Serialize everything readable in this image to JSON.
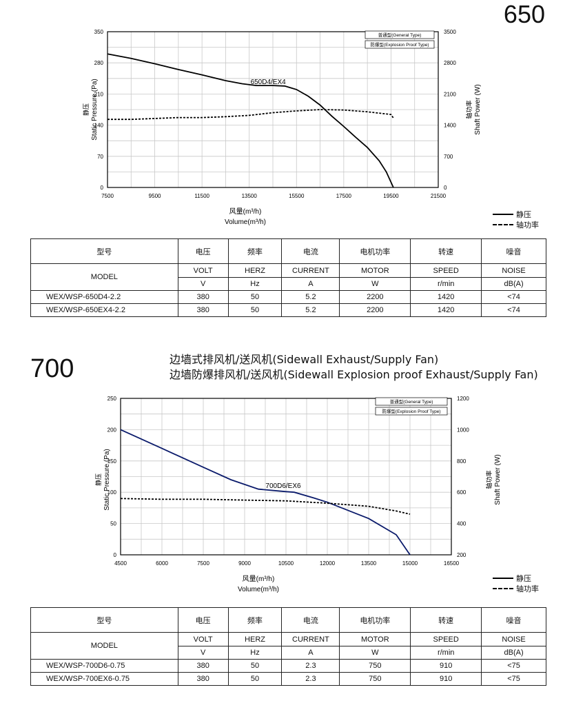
{
  "charts": [
    {
      "size_label": "650",
      "tag_general": "普通型(General Type)",
      "tag_explosion": "防爆型(Explosion Proof Type)",
      "legend_static": "静压",
      "legend_power": "轴功率",
      "table": {
        "headers_cn": [
          "型号",
          "电压",
          "频率",
          "电流",
          "电机功率",
          "转速",
          "噪音"
        ],
        "headers_en": [
          "MODEL",
          "VOLT",
          "HERZ",
          "CURRENT",
          "MOTOR",
          "SPEED",
          "NOISE"
        ],
        "units": [
          "V",
          "Hz",
          "A",
          "W",
          "r/min",
          "dB(A)"
        ],
        "rows": [
          [
            "WEX/WSP-650D4-2.2",
            "380",
            "50",
            "5.2",
            "2200",
            "1420",
            "<74"
          ],
          [
            "WEX/WSP-650EX4-2.2",
            "380",
            "50",
            "5.2",
            "2200",
            "1420",
            "<74"
          ]
        ]
      }
    },
    {
      "size_label": "700",
      "title_line1": "边墙式排风机/送风机(Sidewall Exhaust/Supply  Fan)",
      "title_line2": "边墙防爆排风机/送风机(Sidewall Explosion proof Exhaust/Supply Fan)",
      "tag_general": "普通型(General Type)",
      "tag_explosion": "防爆型(Explosion Proof Type)",
      "legend_static": "静压",
      "legend_power": "轴功率",
      "table": {
        "headers_cn": [
          "型号",
          "电压",
          "频率",
          "电流",
          "电机功率",
          "转速",
          "噪音"
        ],
        "headers_en": [
          "MODEL",
          "VOLT",
          "HERZ",
          "CURRENT",
          "MOTOR",
          "SPEED",
          "NOISE"
        ],
        "units": [
          "V",
          "Hz",
          "A",
          "W",
          "r/min",
          "dB(A)"
        ],
        "rows": [
          [
            "WEX/WSP-700D6-0.75",
            "380",
            "50",
            "2.3",
            "750",
            "910",
            "<75"
          ],
          [
            "WEX/WSP-700EX6-0.75",
            "380",
            "50",
            "2.3",
            "750",
            "910",
            "<75"
          ]
        ]
      }
    }
  ],
  "chart_data": [
    {
      "type": "line",
      "title": "",
      "xlabel_cn": "风量(m³/h)",
      "xlabel": "Volume(m³/h)",
      "ylabel_cn": "静压",
      "ylabel": "Static Pressure (Pa)",
      "y2label_cn": "轴功率",
      "y2label": "Shaft Power (W)",
      "xlim": [
        7500,
        21500
      ],
      "ylim": [
        0,
        350
      ],
      "y2lim": [
        0,
        3500
      ],
      "xticks": [
        7500,
        9500,
        11500,
        13500,
        15500,
        17500,
        19500,
        21500
      ],
      "yticks": [
        0,
        70,
        140,
        210,
        280,
        350
      ],
      "y2ticks": [
        0,
        700,
        1400,
        2100,
        2800,
        3500
      ],
      "grid": true,
      "curve_label": "650D4/EX4",
      "series": [
        {
          "name": "静压",
          "axis": "left",
          "style": "solid",
          "x": [
            7500,
            8500,
            9500,
            10500,
            11500,
            12500,
            13200,
            13800,
            14500,
            15000,
            15500,
            16000,
            16500,
            17000,
            17500,
            18000,
            18500,
            19000,
            19300,
            19600
          ],
          "y": [
            300,
            290,
            278,
            265,
            253,
            240,
            233,
            229,
            229,
            228,
            220,
            205,
            185,
            160,
            137,
            113,
            90,
            60,
            35,
            0
          ]
        },
        {
          "name": "轴功率",
          "axis": "right",
          "style": "dashed",
          "x": [
            7500,
            8500,
            9500,
            10500,
            11500,
            12500,
            13500,
            14500,
            15500,
            16500,
            17500,
            18500,
            19500,
            19600
          ],
          "y": [
            1530,
            1530,
            1550,
            1570,
            1570,
            1590,
            1620,
            1680,
            1720,
            1750,
            1740,
            1700,
            1640,
            1560
          ]
        }
      ]
    },
    {
      "type": "line",
      "title": "",
      "xlabel_cn": "风量(m³/h)",
      "xlabel": "Volume(m³/h)",
      "ylabel_cn": "静压",
      "ylabel": "Static Pressure (Pa)",
      "y2label_cn": "轴功率",
      "y2label": "Shaft Power (W)",
      "xlim": [
        4500,
        16500
      ],
      "ylim": [
        0,
        250
      ],
      "y2lim": [
        200,
        1200
      ],
      "xticks": [
        4500,
        6000,
        7500,
        9000,
        10500,
        12000,
        13500,
        15000,
        16500
      ],
      "yticks": [
        0,
        50,
        100,
        150,
        200,
        250
      ],
      "y2ticks": [
        200,
        400,
        600,
        800,
        1000,
        1200
      ],
      "grid": true,
      "curve_label": "700D6/EX6",
      "series": [
        {
          "name": "静压",
          "axis": "left",
          "style": "solid",
          "x": [
            4500,
            6000,
            7500,
            8500,
            9500,
            10500,
            10800,
            11500,
            12000,
            13500,
            14500,
            15000
          ],
          "y": [
            200,
            170,
            140,
            120,
            105,
            101,
            100,
            91,
            84,
            58,
            32,
            0
          ]
        },
        {
          "name": "轴功率",
          "axis": "right",
          "style": "dashed",
          "x": [
            4500,
            6000,
            7500,
            9000,
            10500,
            12000,
            13500,
            14500,
            15000
          ],
          "y": [
            560,
            555,
            555,
            550,
            545,
            530,
            510,
            480,
            460
          ]
        }
      ]
    }
  ]
}
